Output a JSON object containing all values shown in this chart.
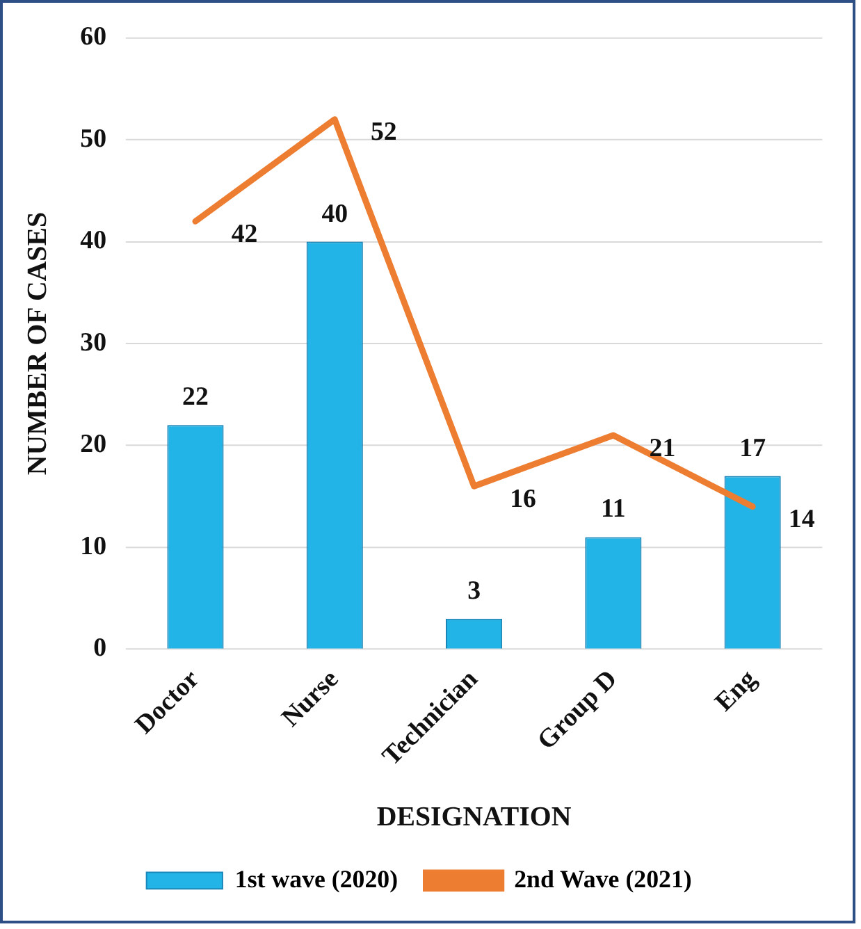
{
  "chart_data": {
    "type": "bar",
    "xlabel": "DESIGNATION",
    "ylabel": "NUMBER OF CASES",
    "categories": [
      "Doctor",
      "Nurse",
      "Technician",
      "Group D",
      "Eng"
    ],
    "series": [
      {
        "name": "1st wave (2020)",
        "color": "#22b4e6",
        "values": [
          22,
          40,
          3,
          11,
          17
        ]
      },
      {
        "name": "2nd Wave (2021)",
        "type": "line",
        "color": "#ed7d31",
        "values": [
          42,
          52,
          16,
          21,
          14
        ]
      }
    ],
    "ylim": [
      0,
      60
    ],
    "yticks": [
      0,
      10,
      20,
      30,
      40,
      50,
      60
    ],
    "grid": "y",
    "legend": "bottom",
    "data_labels": true,
    "marker": "none",
    "line_style": "solid"
  }
}
